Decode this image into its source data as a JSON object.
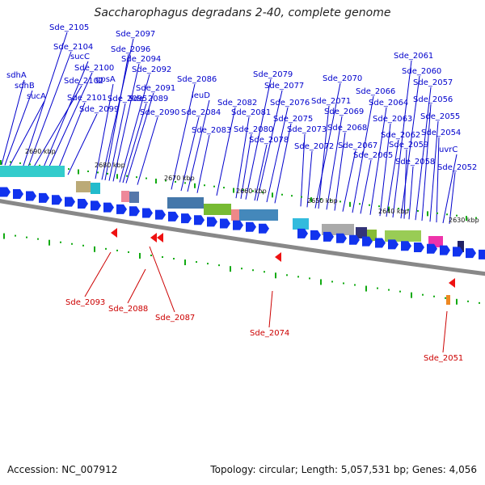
{
  "title": "Saccharophagus degradans 2-40, complete genome",
  "footer": {
    "accession": "Accession: NC_007912",
    "summary": "Topology: circular; Length: 5,057,531 bp; Genes: 4,056"
  },
  "colors": {
    "forward_label": "#0000cc",
    "reverse_label": "#cc0000",
    "backbone": "#888888",
    "tick": "#11aa11"
  },
  "kbp_labels": [
    "2690 kbp",
    "2680 kbp",
    "2670 kbp",
    "2660 kbp",
    "2650 kbp",
    "2640 kbp",
    "2630 kbp"
  ],
  "forward_genes": [
    "sdhA",
    "sdhB",
    "sucA",
    "Sde_2105",
    "Sde_2104",
    "sucC",
    "Sde_2100",
    "Sde_2102",
    "Sde_2101",
    "Sde_2099",
    "Sde_2097",
    "Sde_2096",
    "Sde_2094",
    "gpsA",
    "Sde_2092",
    "Sde_2095",
    "Sde_2091",
    "Sde_2089",
    "Sde_2090",
    "Sde_2086",
    "leuD",
    "Sde_2084",
    "Sde_2083",
    "Sde_2082",
    "Sde_2081",
    "Sde_2080",
    "Sde_2078",
    "Sde_2079",
    "Sde_2077",
    "Sde_2076",
    "Sde_2075",
    "Sde_2073",
    "Sde_2072",
    "Sde_2070",
    "Sde_2071",
    "Sde_2069",
    "Sde_2068",
    "Sde_2067",
    "Sde_2066",
    "Sde_2065",
    "Sde_2064",
    "Sde_2063",
    "Sde_2062",
    "Sde_2061",
    "Sde_2060",
    "Sde_2059",
    "Sde_2058",
    "Sde_2057",
    "Sde_2056",
    "Sde_2055",
    "Sde_2054",
    "uvrC",
    "Sde_2052"
  ],
  "reverse_genes": [
    "Sde_2093",
    "Sde_2088",
    "Sde_2087",
    "Sde_2074",
    "Sde_2051"
  ]
}
